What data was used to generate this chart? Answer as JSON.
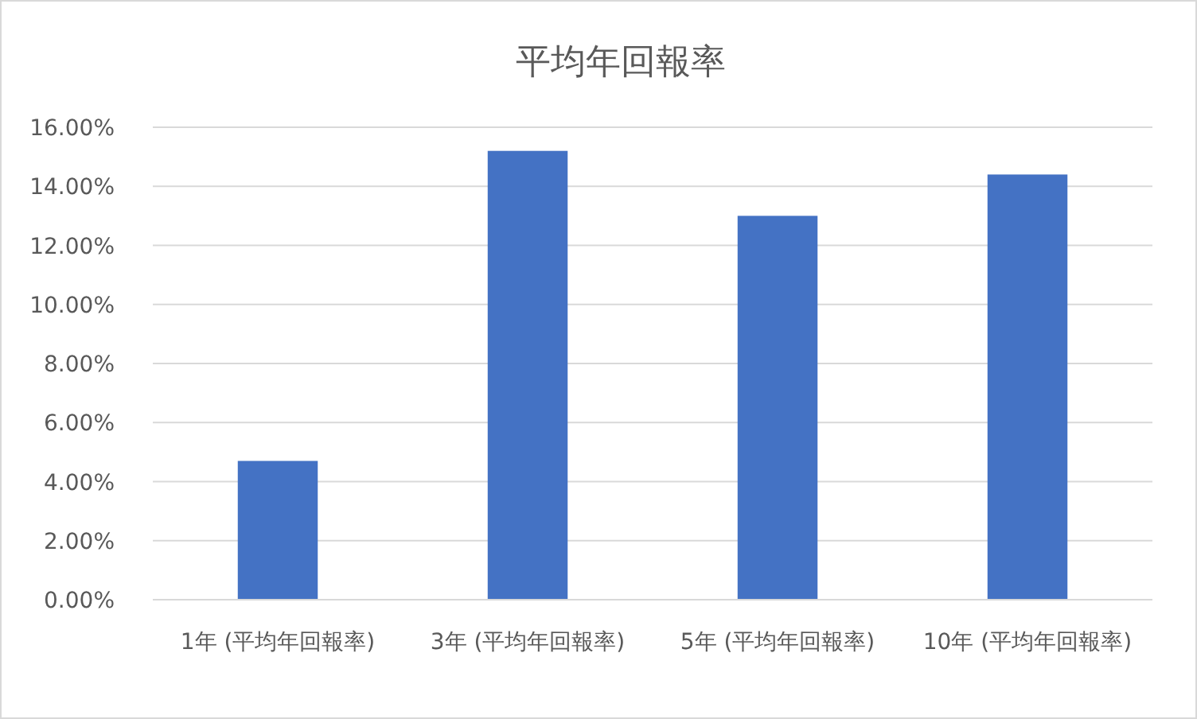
{
  "chart_data": {
    "type": "bar",
    "title": "平均年回報率",
    "categories": [
      "1年 (平均年回報率)",
      "3年 (平均年回報率)",
      "5年 (平均年回報率)",
      "10年 (平均年回報率)"
    ],
    "values": [
      4.7,
      15.2,
      13.0,
      14.4
    ],
    "color": "#4472c4",
    "ylim": [
      0,
      16
    ],
    "yticks": [
      {
        "value": 0,
        "label": "0.00%"
      },
      {
        "value": 2,
        "label": "2.00%"
      },
      {
        "value": 4,
        "label": "4.00%"
      },
      {
        "value": 6,
        "label": "6.00%"
      },
      {
        "value": 8,
        "label": "8.00%"
      },
      {
        "value": 10,
        "label": "10.00%"
      },
      {
        "value": 12,
        "label": "12.00%"
      },
      {
        "value": 14,
        "label": "14.00%"
      },
      {
        "value": 16,
        "label": "16.00%"
      }
    ],
    "grid": "y"
  }
}
